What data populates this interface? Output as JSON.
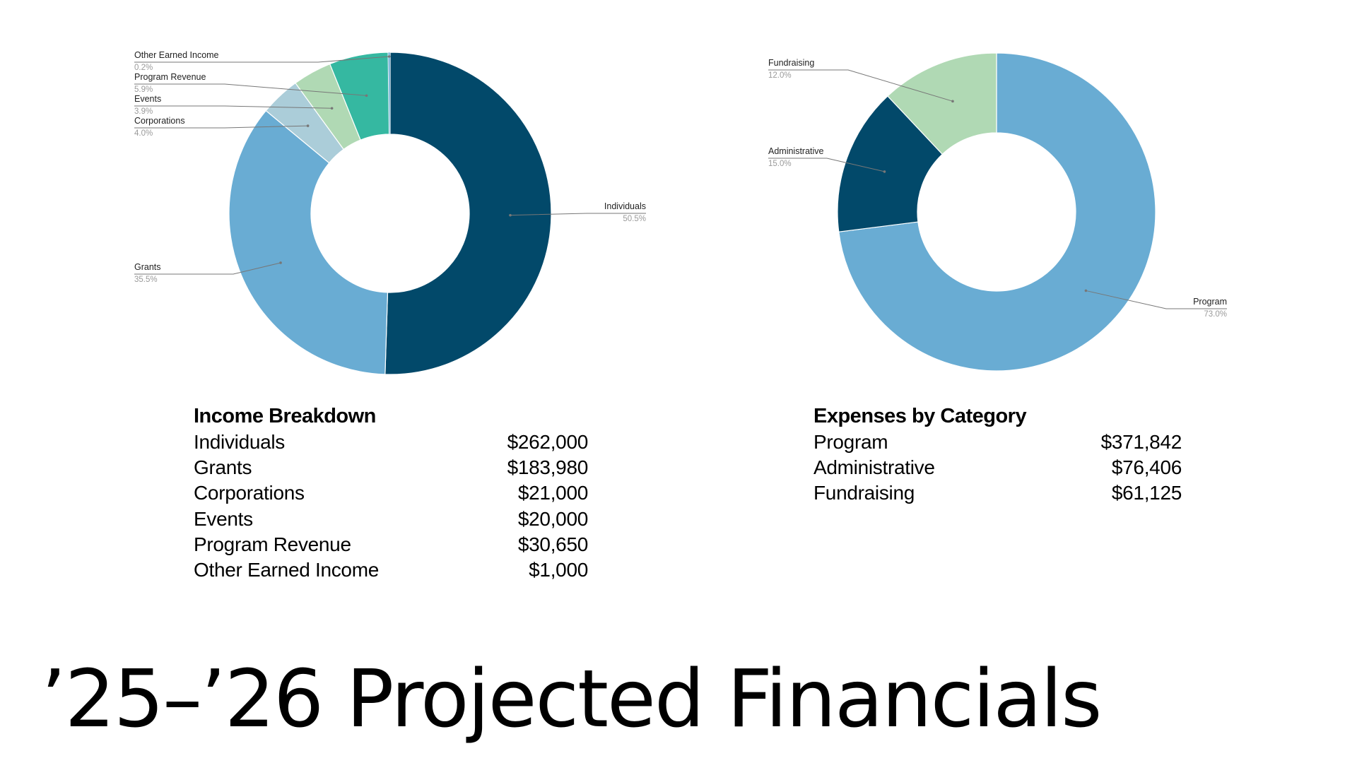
{
  "title": "’25–’26 Projected Financials",
  "colors": {
    "navy": "#02496a",
    "blue": "#69acd3",
    "light_blue": "#abcdd9",
    "light_green": "#b0d9b4",
    "teal": "#35b8a1",
    "label_value": "#9a9a9a",
    "leader_line": "#777777"
  },
  "income_table": {
    "title": "Income Breakdown",
    "rows": [
      {
        "label": "Individuals",
        "value": "$262,000"
      },
      {
        "label": "Grants",
        "value": "$183,980"
      },
      {
        "label": "Corporations",
        "value": "$21,000"
      },
      {
        "label": "Events",
        "value": "$20,000"
      },
      {
        "label": "Program Revenue",
        "value": "$30,650"
      },
      {
        "label": "Other Earned Income",
        "value": "$1,000"
      }
    ]
  },
  "expense_table": {
    "title": "Expenses by Category",
    "rows": [
      {
        "label": "Program",
        "value": "$371,842"
      },
      {
        "label": "Administrative",
        "value": "$76,406"
      },
      {
        "label": "Fundraising",
        "value": "$61,125"
      }
    ]
  },
  "chart_data": [
    {
      "type": "pie",
      "donut": true,
      "title": "",
      "slices": [
        {
          "label": "Individuals",
          "value": 50.5,
          "pct_label": "50.5%",
          "color": "#02496a"
        },
        {
          "label": "Grants",
          "value": 35.5,
          "pct_label": "35.5%",
          "color": "#69acd3"
        },
        {
          "label": "Corporations",
          "value": 4.0,
          "pct_label": "4.0%",
          "color": "#abcdd9"
        },
        {
          "label": "Events",
          "value": 3.9,
          "pct_label": "3.9%",
          "color": "#b0d9b4"
        },
        {
          "label": "Program Revenue",
          "value": 5.9,
          "pct_label": "5.9%",
          "color": "#35b8a1"
        },
        {
          "label": "Other Earned Income",
          "value": 0.2,
          "pct_label": "0.2%",
          "color": "#69acd3"
        }
      ]
    },
    {
      "type": "pie",
      "donut": true,
      "title": "",
      "slices": [
        {
          "label": "Program",
          "value": 73.0,
          "pct_label": "73.0%",
          "color": "#69acd3"
        },
        {
          "label": "Administrative",
          "value": 15.0,
          "pct_label": "15.0%",
          "color": "#02496a"
        },
        {
          "label": "Fundraising",
          "value": 12.0,
          "pct_label": "12.0%",
          "color": "#b0d9b4"
        }
      ]
    }
  ]
}
